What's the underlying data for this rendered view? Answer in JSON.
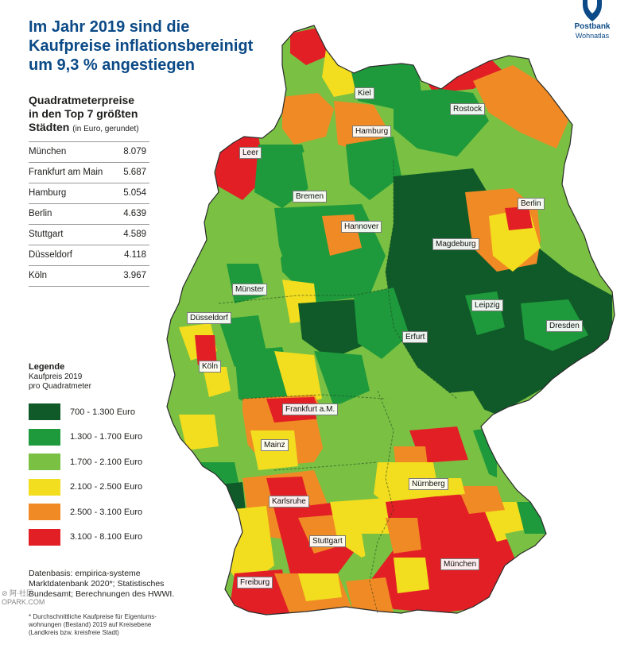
{
  "title": {
    "line1": "Im Jahr 2019 sind die",
    "line2": "Kaufpreise inflationsbereinigt",
    "line3": "um 9,3 % angestiegen"
  },
  "brand": {
    "name": "Postbank",
    "sub": "Wohnatlas"
  },
  "price_table": {
    "heading_line1": "Quadratmeterpreise",
    "heading_line2": "in den Top 7 größten",
    "heading_line3": "Städten",
    "heading_note": "(in Euro, gerundet)",
    "rows": [
      {
        "city": "München",
        "value": "8.079"
      },
      {
        "city": "Frankfurt am Main",
        "value": "5.687"
      },
      {
        "city": "Hamburg",
        "value": "5.054"
      },
      {
        "city": "Berlin",
        "value": "4.639"
      },
      {
        "city": "Stuttgart",
        "value": "4.589"
      },
      {
        "city": "Düsseldorf",
        "value": "4.118"
      },
      {
        "city": "Köln",
        "value": "3.967"
      }
    ]
  },
  "legend": {
    "title": "Legende",
    "sub1": "Kaufpreis 2019",
    "sub2": "pro Quadratmeter",
    "items": [
      {
        "label": "700 - 1.300 Euro",
        "color": "#0f5a28"
      },
      {
        "label": "1.300 - 1.700 Euro",
        "color": "#1e9a3c"
      },
      {
        "label": "1.700 - 2.100 Euro",
        "color": "#79c043"
      },
      {
        "label": "2.100 - 2.500 Euro",
        "color": "#f2dd1e"
      },
      {
        "label": "2.500 - 3.100 Euro",
        "color": "#f08a24"
      },
      {
        "label": "3.100 - 8.100 Euro",
        "color": "#e31f26"
      }
    ]
  },
  "source": {
    "line1": "Datenbasis: empirica-systeme",
    "line2": "Marktdatenbank 2020*; Statistisches",
    "line3": "Bundesamt; Berechnungen des HWWI."
  },
  "footnote": {
    "line1": "* Durchschnittliche Kaufpreise für Eigentums-",
    "line2": "wohnungen (Bestand) 2019 auf Kreisebene",
    "line3": "(Landkreis bzw. kreisfreie Stadt)"
  },
  "cities": [
    {
      "name": "Kiel"
    },
    {
      "name": "Rostock"
    },
    {
      "name": "Hamburg"
    },
    {
      "name": "Leer"
    },
    {
      "name": "Bremen"
    },
    {
      "name": "Berlin"
    },
    {
      "name": "Hannover"
    },
    {
      "name": "Magdeburg"
    },
    {
      "name": "Münster"
    },
    {
      "name": "Leipzig"
    },
    {
      "name": "Düsseldorf"
    },
    {
      "name": "Dresden"
    },
    {
      "name": "Erfurt"
    },
    {
      "name": "Köln"
    },
    {
      "name": "Frankfurt a.M."
    },
    {
      "name": "Mainz"
    },
    {
      "name": "Nürnberg"
    },
    {
      "name": "Karlsruhe"
    },
    {
      "name": "Stuttgart"
    },
    {
      "name": "München"
    },
    {
      "name": "Freiburg"
    }
  ],
  "watermark": {
    "line1": "⊘ 阿·社区",
    "line2": "OPARK.COM"
  }
}
